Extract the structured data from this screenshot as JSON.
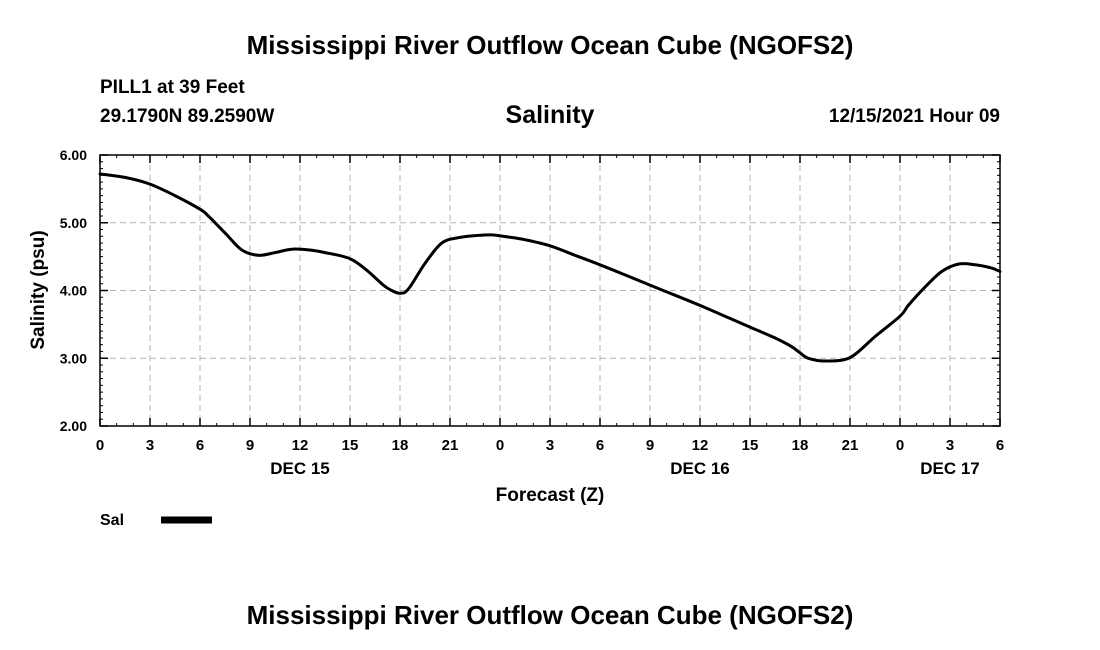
{
  "header": {
    "title": "Mississippi River Outflow Ocean Cube (NGOFS2)",
    "station": "PILL1 at 39 Feet",
    "coords": "29.1790N  89.2590W",
    "variable": "Salinity",
    "datetime": "12/15/2021 Hour 09"
  },
  "footer": {
    "title": "Mississippi River Outflow Ocean Cube (NGOFS2)"
  },
  "legend": {
    "label": "Sal"
  },
  "chart_data": {
    "type": "line",
    "title": "Salinity",
    "xlabel": "Forecast (Z)",
    "ylabel": "Salinity (psu)",
    "xlim": [
      0,
      54
    ],
    "ylim": [
      2.0,
      6.0
    ],
    "grid": true,
    "legend_position": "bottom-left",
    "y_ticks": [
      2.0,
      3.0,
      4.0,
      5.0,
      6.0
    ],
    "y_tick_labels": [
      "2.00",
      "3.00",
      "4.00",
      "5.00",
      "6.00"
    ],
    "x_ticks": [
      0,
      3,
      6,
      9,
      12,
      15,
      18,
      21,
      24,
      27,
      30,
      33,
      36,
      39,
      42,
      45,
      48,
      51,
      54
    ],
    "x_tick_labels": [
      "0",
      "3",
      "6",
      "9",
      "12",
      "15",
      "18",
      "21",
      "0",
      "3",
      "6",
      "9",
      "12",
      "15",
      "18",
      "21",
      "0",
      "3",
      "6"
    ],
    "date_labels": [
      {
        "label": "DEC 15",
        "at": 12
      },
      {
        "label": "DEC 16",
        "at": 36
      },
      {
        "label": "DEC 17",
        "at": 51
      }
    ],
    "series": [
      {
        "name": "Sal",
        "color": "#000000",
        "x": [
          0,
          1.5,
          3,
          4.5,
          6,
          6.5,
          7.5,
          8.5,
          9.5,
          10.5,
          11.5,
          12.5,
          13.5,
          15,
          16,
          17,
          17.5,
          18,
          18.5,
          19.5,
          20.5,
          21.5,
          22.5,
          23.5,
          24.5,
          25.5,
          27,
          28.5,
          30,
          31.5,
          33,
          34.5,
          36,
          37.5,
          39,
          40.5,
          41.5,
          42,
          42.5,
          43.5,
          45,
          46.5,
          48,
          48.5,
          49.5,
          50.5,
          51.5,
          52.5,
          53.5,
          54
        ],
        "y": [
          5.72,
          5.67,
          5.57,
          5.4,
          5.2,
          5.1,
          4.85,
          4.6,
          4.52,
          4.56,
          4.61,
          4.6,
          4.56,
          4.47,
          4.3,
          4.08,
          4.0,
          3.96,
          4.02,
          4.4,
          4.7,
          4.78,
          4.81,
          4.82,
          4.79,
          4.75,
          4.66,
          4.52,
          4.38,
          4.23,
          4.08,
          3.93,
          3.78,
          3.62,
          3.46,
          3.3,
          3.17,
          3.08,
          3.0,
          2.96,
          3.01,
          3.32,
          3.62,
          3.78,
          4.05,
          4.28,
          4.39,
          4.38,
          4.33,
          4.28
        ]
      }
    ]
  }
}
